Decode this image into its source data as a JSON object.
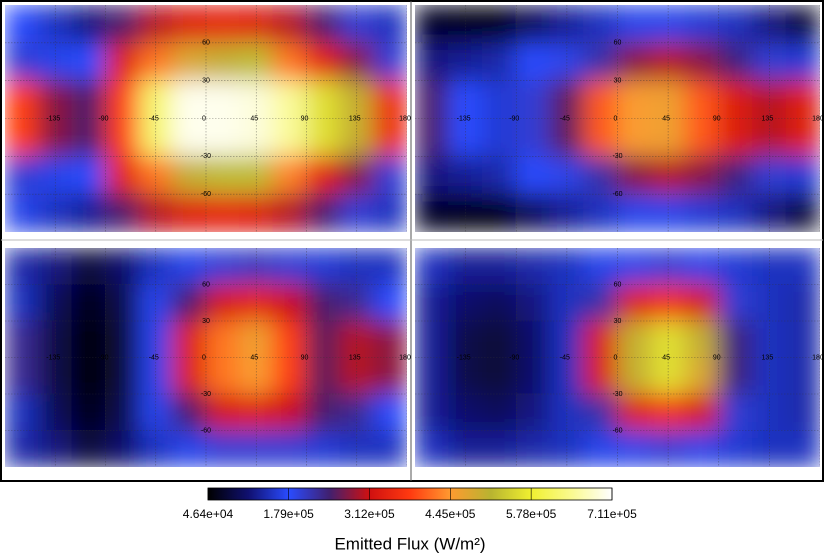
{
  "chart_data": [
    {
      "type": "heatmap",
      "x": [
        -165,
        -135,
        -105,
        -75,
        -45,
        -15,
        15,
        45,
        75,
        105,
        135,
        165
      ],
      "y": [
        75,
        45,
        15,
        -15,
        -45,
        -75
      ],
      "z": [
        [
          180000,
          150000,
          120000,
          250000,
          300000,
          330000,
          340000,
          330000,
          300000,
          250000,
          200000,
          150000
        ],
        [
          200000,
          170000,
          180000,
          330000,
          420000,
          480000,
          500000,
          520000,
          420000,
          340000,
          280000,
          200000
        ],
        [
          380000,
          280000,
          250000,
          380000,
          620000,
          700000,
          700000,
          690000,
          650000,
          560000,
          500000,
          350000
        ],
        [
          380000,
          280000,
          250000,
          380000,
          620000,
          700000,
          700000,
          690000,
          650000,
          560000,
          500000,
          350000
        ],
        [
          200000,
          170000,
          180000,
          340000,
          420000,
          500000,
          520000,
          520000,
          430000,
          340000,
          280000,
          200000
        ],
        [
          170000,
          150000,
          130000,
          250000,
          300000,
          330000,
          340000,
          330000,
          300000,
          250000,
          200000,
          150000
        ]
      ],
      "xlim": [
        -180,
        180
      ],
      "ylim": [
        -90,
        90
      ],
      "xticks": [
        -135,
        -90,
        -45,
        0,
        45,
        90,
        135,
        180
      ],
      "yticks": [
        60,
        30,
        -30,
        -60
      ],
      "grid": true
    },
    {
      "type": "heatmap",
      "x": [
        -165,
        -135,
        -105,
        -75,
        -45,
        -15,
        15,
        45,
        75,
        105,
        135,
        165
      ],
      "y": [
        75,
        45,
        15,
        -15,
        -45,
        -75
      ],
      "z": [
        [
          70000,
          60000,
          60000,
          100000,
          130000,
          150000,
          170000,
          170000,
          160000,
          150000,
          120000,
          80000
        ],
        [
          120000,
          130000,
          140000,
          180000,
          190000,
          220000,
          280000,
          300000,
          280000,
          240000,
          200000,
          160000
        ],
        [
          250000,
          180000,
          160000,
          200000,
          260000,
          400000,
          450000,
          460000,
          400000,
          330000,
          300000,
          330000
        ],
        [
          250000,
          180000,
          160000,
          200000,
          260000,
          400000,
          450000,
          460000,
          400000,
          330000,
          300000,
          330000
        ],
        [
          120000,
          130000,
          140000,
          180000,
          190000,
          220000,
          280000,
          300000,
          280000,
          240000,
          200000,
          160000
        ],
        [
          70000,
          60000,
          60000,
          100000,
          130000,
          150000,
          170000,
          170000,
          160000,
          150000,
          120000,
          80000
        ]
      ],
      "xlim": [
        -180,
        180
      ],
      "ylim": [
        -90,
        90
      ],
      "xticks": [
        -135,
        -90,
        -45,
        0,
        45,
        90,
        135,
        180
      ],
      "yticks": [
        60,
        30,
        -30,
        -60
      ],
      "grid": true
    },
    {
      "type": "heatmap",
      "x": [
        -165,
        -135,
        -105,
        -75,
        -45,
        -15,
        15,
        45,
        75,
        105,
        135,
        165
      ],
      "y": [
        75,
        45,
        15,
        -15,
        -45,
        -75
      ],
      "z": [
        [
          140000,
          120000,
          80000,
          110000,
          150000,
          170000,
          200000,
          210000,
          200000,
          160000,
          150000,
          150000
        ],
        [
          150000,
          100000,
          60000,
          90000,
          170000,
          250000,
          320000,
          340000,
          310000,
          250000,
          230000,
          180000
        ],
        [
          230000,
          90000,
          50000,
          80000,
          170000,
          330000,
          420000,
          460000,
          380000,
          260000,
          300000,
          280000
        ],
        [
          230000,
          90000,
          50000,
          80000,
          170000,
          330000,
          420000,
          450000,
          380000,
          260000,
          300000,
          280000
        ],
        [
          150000,
          100000,
          60000,
          90000,
          170000,
          250000,
          320000,
          330000,
          310000,
          250000,
          230000,
          180000
        ],
        [
          140000,
          120000,
          80000,
          110000,
          150000,
          170000,
          200000,
          200000,
          200000,
          160000,
          150000,
          150000
        ]
      ],
      "xlim": [
        -180,
        180
      ],
      "ylim": [
        -90,
        90
      ],
      "xticks": [
        -135,
        -90,
        -45,
        0,
        45,
        90,
        135,
        180
      ],
      "yticks": [
        60,
        30,
        -30,
        -60
      ],
      "grid": true
    },
    {
      "type": "heatmap",
      "x": [
        -165,
        -135,
        -105,
        -75,
        -45,
        -15,
        15,
        45,
        75,
        105,
        135,
        165
      ],
      "y": [
        75,
        45,
        15,
        -15,
        -45,
        -75
      ],
      "z": [
        [
          150000,
          130000,
          130000,
          140000,
          150000,
          170000,
          190000,
          200000,
          190000,
          160000,
          150000,
          150000
        ],
        [
          130000,
          110000,
          100000,
          120000,
          150000,
          220000,
          330000,
          360000,
          320000,
          200000,
          150000,
          140000
        ],
        [
          130000,
          90000,
          80000,
          110000,
          150000,
          330000,
          500000,
          560000,
          500000,
          240000,
          150000,
          140000
        ],
        [
          130000,
          90000,
          80000,
          110000,
          150000,
          330000,
          500000,
          560000,
          480000,
          240000,
          150000,
          140000
        ],
        [
          130000,
          110000,
          100000,
          120000,
          150000,
          220000,
          330000,
          360000,
          320000,
          200000,
          150000,
          140000
        ],
        [
          150000,
          130000,
          130000,
          140000,
          150000,
          170000,
          190000,
          200000,
          190000,
          160000,
          150000,
          150000
        ]
      ],
      "xlim": [
        -180,
        180
      ],
      "ylim": [
        -90,
        90
      ],
      "xticks": [
        -135,
        -90,
        -45,
        0,
        45,
        90,
        135,
        180
      ],
      "yticks": [
        60,
        30,
        -30,
        -60
      ],
      "grid": true
    }
  ],
  "colorbar": {
    "label": "Emitted Flux (W/m²)",
    "lim": [
      46400,
      711000
    ],
    "ticks": [
      {
        "value": 46400,
        "label": "4.64e+04"
      },
      {
        "value": 179000,
        "label": "1.79e+05"
      },
      {
        "value": 312000,
        "label": "3.12e+05"
      },
      {
        "value": 445000,
        "label": "4.45e+05"
      },
      {
        "value": 578000,
        "label": "5.78e+05"
      },
      {
        "value": 711000,
        "label": "7.11e+05"
      }
    ],
    "colormap": [
      "#000000",
      "#101070",
      "#2a4cff",
      "#402070",
      "#d01010",
      "#ff3a10",
      "#ff9a30",
      "#b8b430",
      "#f0f030",
      "#fafa90",
      "#ffffff"
    ]
  }
}
